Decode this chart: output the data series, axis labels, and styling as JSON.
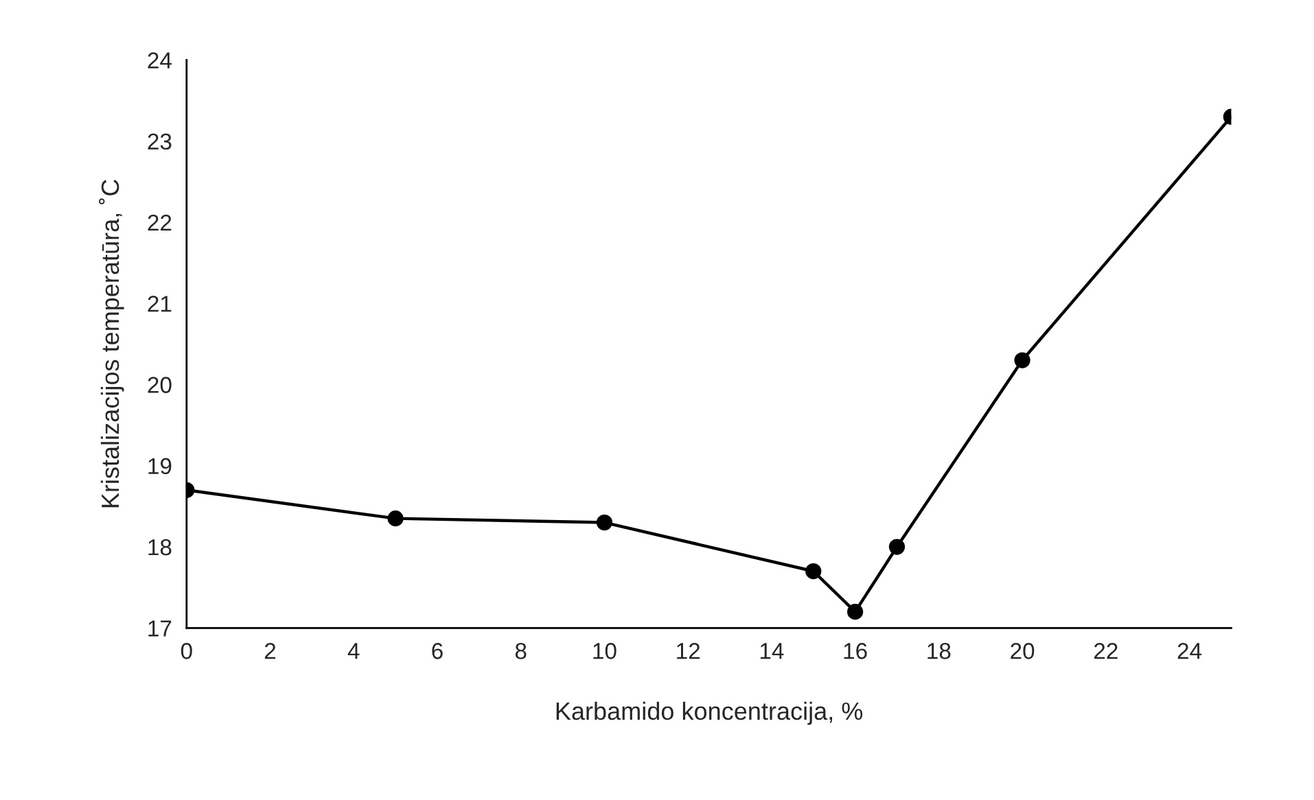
{
  "chart_data": {
    "type": "line",
    "xlabel": "Karbamido koncentracija, %",
    "ylabel": "Kristalizacijos temperatūra, ˚C",
    "x": [
      0,
      5,
      10,
      15,
      16,
      17,
      20,
      25
    ],
    "series": [
      {
        "color": "#000000",
        "values": [
          18.7,
          18.35,
          18.3,
          17.7,
          17.2,
          18.0,
          20.3,
          23.3
        ]
      }
    ],
    "xlim": [
      0,
      25
    ],
    "xticks": [
      0,
      2,
      4,
      6,
      8,
      10,
      12,
      14,
      16,
      18,
      20,
      22,
      24
    ],
    "ylim": [
      17,
      24
    ],
    "yticks": [
      17,
      18,
      19,
      20,
      21,
      22,
      23,
      24
    ],
    "grid": false,
    "legend": false,
    "marker": "circle",
    "line_style": "solid"
  }
}
